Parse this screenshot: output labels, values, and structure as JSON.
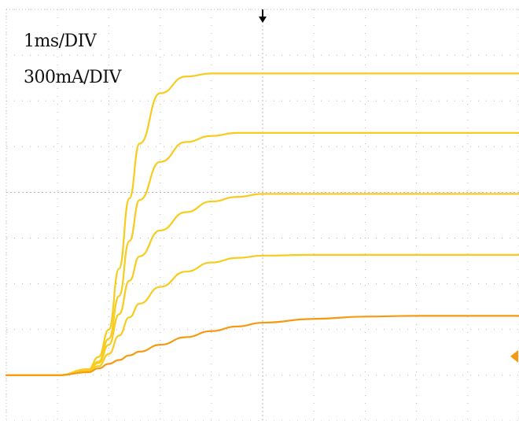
{
  "scope": {
    "time_scale": "1ms/DIV",
    "current_scale": "300mA/DIV",
    "trigger_marker_icon": "down-arrow-icon",
    "level_marker_icon": "diamond-marker-icon",
    "colors": {
      "grid": "#b8b8b8",
      "trace_main": "#f7cc1e",
      "trace_low": "#f59a12",
      "level_marker": "#f59a12",
      "trigger_marker": "#000000"
    }
  },
  "chart_data": {
    "type": "line",
    "title": "",
    "xlabel": "",
    "ylabel": "",
    "x_unit": "ms",
    "y_unit": "mA",
    "xlim": [
      0,
      10
    ],
    "ylim": [
      -300,
      2400
    ],
    "grid": true,
    "series": [
      {
        "x": [
          0,
          1.0,
          1.6,
          1.8,
          2.0,
          2.2,
          2.4,
          2.6,
          3.0,
          3.5,
          4.0,
          4.5,
          5.0,
          6.0,
          7.0,
          8.0,
          10.0
        ],
        "values": [
          0,
          0,
          40,
          120,
          300,
          700,
          1160,
          1520,
          1850,
          1960,
          1980,
          1980,
          1980,
          1980,
          1980,
          1980,
          1980
        ],
        "color": "#f7cc1e"
      },
      {
        "x": [
          0,
          1.0,
          1.6,
          1.8,
          2.0,
          2.2,
          2.4,
          2.6,
          3.0,
          3.5,
          4.0,
          4.5,
          5.0,
          6.0,
          7.0,
          8.0,
          10.0
        ],
        "values": [
          0,
          0,
          30,
          90,
          240,
          520,
          880,
          1150,
          1400,
          1530,
          1570,
          1590,
          1590,
          1590,
          1590,
          1590,
          1590
        ],
        "color": "#f7cc1e"
      },
      {
        "x": [
          0,
          1.0,
          1.6,
          1.8,
          2.0,
          2.2,
          2.4,
          2.6,
          3.0,
          3.5,
          4.0,
          4.5,
          5.0,
          6.0,
          7.0,
          8.0,
          10.0
        ],
        "values": [
          0,
          0,
          30,
          80,
          200,
          400,
          620,
          780,
          950,
          1070,
          1140,
          1170,
          1190,
          1190,
          1190,
          1190,
          1190
        ],
        "color": "#f7cc1e"
      },
      {
        "x": [
          0,
          1.0,
          1.6,
          1.8,
          2.0,
          2.2,
          2.4,
          2.6,
          3.0,
          3.5,
          4.0,
          4.5,
          5.0,
          6.0,
          7.0,
          8.0,
          10.0
        ],
        "values": [
          0,
          0,
          25,
          60,
          140,
          260,
          380,
          470,
          580,
          680,
          740,
          770,
          785,
          790,
          790,
          790,
          790
        ],
        "color": "#f7cc1e"
      },
      {
        "x": [
          0,
          1.0,
          1.6,
          1.8,
          2.0,
          2.2,
          2.4,
          2.6,
          3.0,
          3.5,
          4.0,
          4.5,
          5.0,
          6.0,
          7.0,
          8.0,
          10.0
        ],
        "values": [
          0,
          0,
          20,
          45,
          75,
          100,
          130,
          155,
          200,
          250,
          290,
          320,
          345,
          370,
          385,
          390,
          390
        ],
        "color": "#f59a12"
      }
    ]
  }
}
